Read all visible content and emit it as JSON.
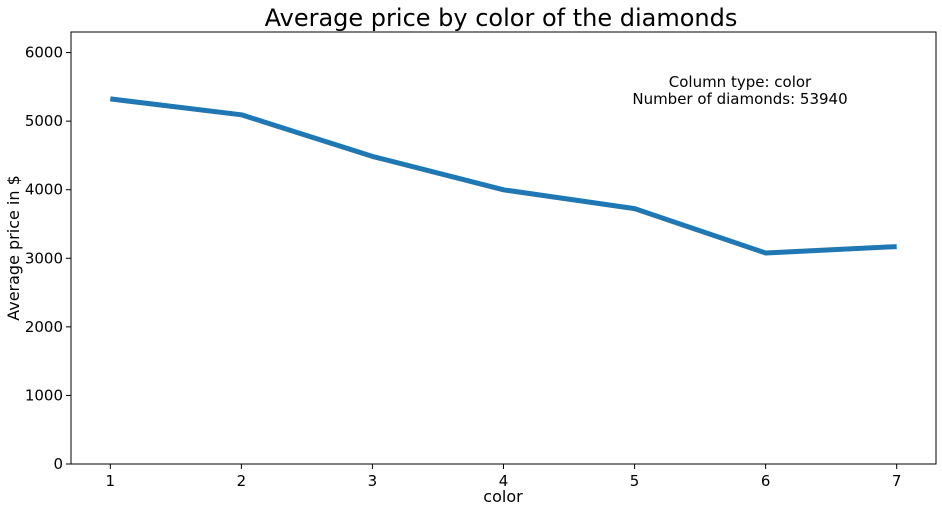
{
  "chart_data": {
    "type": "line",
    "title": "Average price by color of the diamonds",
    "xlabel": "color",
    "ylabel": "Average price in $",
    "x": [
      1,
      2,
      3,
      4,
      5,
      6,
      7
    ],
    "series": [
      {
        "values": [
          5324,
          5092,
          4486,
          3999,
          3725,
          3077,
          3170
        ],
        "color": "#1f77b4"
      }
    ],
    "xlim": [
      0.7,
      7.3
    ],
    "ylim": [
      0,
      6300
    ],
    "x_ticks": [
      "1",
      "2",
      "3",
      "4",
      "5",
      "6",
      "7"
    ],
    "y_ticks": [
      "0",
      "1000",
      "2000",
      "3000",
      "4000",
      "5000",
      "6000"
    ],
    "grid": false,
    "annotation": {
      "line1": "Column type: color",
      "line2": "Number of diamonds: 53940"
    }
  }
}
